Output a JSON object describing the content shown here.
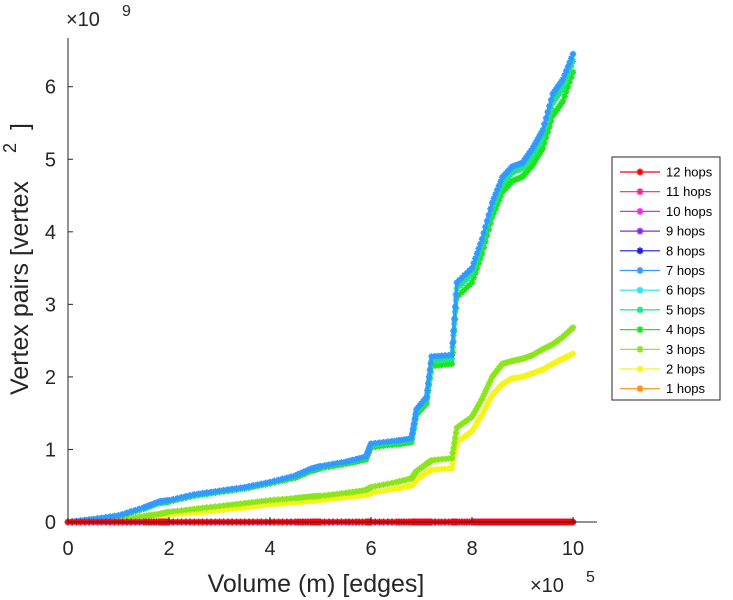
{
  "chart_data": {
    "type": "line",
    "title": "",
    "xlabel": "Volume (m) [edges]",
    "ylabel_text": "Vertex pairs [vertex",
    "ylabel_superscript": "2",
    "ylabel_close": "]",
    "x_exponent_label": "×10",
    "x_exponent": "5",
    "y_exponent_label": "×10",
    "y_exponent": "9",
    "xlim": [
      0,
      10.5
    ],
    "ylim": [
      0,
      6.8
    ],
    "x_ticks": [
      0,
      2,
      4,
      6,
      8,
      10
    ],
    "x_tick_labels": [
      "0",
      "2",
      "4",
      "6",
      "8",
      "10"
    ],
    "y_ticks": [
      0,
      1,
      2,
      3,
      4,
      5,
      6
    ],
    "y_tick_labels": [
      "0",
      "1",
      "2",
      "3",
      "4",
      "5",
      "6"
    ],
    "marker": "asterisk",
    "grid": false,
    "legend_position": "right",
    "x": [
      0,
      0.5,
      1,
      1.5,
      1.8,
      2,
      2.5,
      3,
      3.5,
      4,
      4.5,
      4.8,
      5,
      5.5,
      5.9,
      6.0,
      6.5,
      6.8,
      6.9,
      7.1,
      7.2,
      7.6,
      7.7,
      8.0,
      8.2,
      8.4,
      8.6,
      8.8,
      9.0,
      9.2,
      9.4,
      9.6,
      9.8,
      10
    ],
    "series": [
      {
        "name": "12 hops",
        "color": "#ff0000",
        "values": [
          0,
          0,
          0,
          0,
          0,
          0,
          0,
          0,
          0,
          0,
          0,
          0,
          0,
          0,
          0,
          0,
          0,
          0,
          0,
          0,
          0,
          0,
          0,
          0,
          0,
          0,
          0,
          0,
          0,
          0,
          0,
          0,
          0,
          0
        ]
      },
      {
        "name": "11 hops",
        "color": "#ff1f8f",
        "values": [
          0,
          0,
          0,
          0,
          0,
          0,
          0,
          0,
          0,
          0,
          0,
          0,
          0,
          0,
          0,
          0,
          0,
          0,
          0,
          0,
          0,
          0,
          0,
          0,
          0,
          0,
          0,
          0,
          0,
          0,
          0,
          0,
          0,
          0
        ]
      },
      {
        "name": "10 hops",
        "color": "#f026f0",
        "values": [
          0,
          0,
          0,
          0,
          0,
          0,
          0,
          0,
          0,
          0,
          0,
          0,
          0,
          0,
          0,
          0,
          0,
          0,
          0,
          0,
          0,
          0,
          0,
          0,
          0,
          0,
          0,
          0,
          0,
          0,
          0,
          0,
          0,
          0
        ]
      },
      {
        "name": "9 hops",
        "color": "#8a2be2",
        "values": [
          0,
          0,
          0,
          0,
          0,
          0,
          0,
          0,
          0,
          0,
          0,
          0,
          0,
          0,
          0,
          0,
          0,
          0,
          0,
          0,
          0,
          0,
          0,
          0,
          0,
          0,
          0,
          0,
          0,
          0,
          0,
          0,
          0,
          0
        ]
      },
      {
        "name": "8 hops",
        "color": "#1a1ae6",
        "values": [
          0,
          0,
          0,
          0,
          0,
          0,
          0,
          0,
          0,
          0,
          0,
          0,
          0,
          0,
          0,
          0,
          0,
          0,
          0,
          0,
          0,
          0,
          0,
          0,
          0,
          0,
          0,
          0,
          0,
          0,
          0,
          0,
          0,
          0
        ]
      },
      {
        "name": "7 hops",
        "color": "#3399ff",
        "values": [
          0,
          0.04,
          0.09,
          0.2,
          0.28,
          0.3,
          0.38,
          0.43,
          0.48,
          0.55,
          0.64,
          0.73,
          0.77,
          0.83,
          0.9,
          1.08,
          1.12,
          1.15,
          1.55,
          1.72,
          2.28,
          2.3,
          3.3,
          3.5,
          3.9,
          4.4,
          4.75,
          4.9,
          4.95,
          5.15,
          5.4,
          5.9,
          6.1,
          6.45
        ]
      },
      {
        "name": "6 hops",
        "color": "#26e6f2",
        "values": [
          0,
          0.04,
          0.09,
          0.2,
          0.28,
          0.3,
          0.38,
          0.43,
          0.48,
          0.55,
          0.64,
          0.73,
          0.77,
          0.83,
          0.9,
          1.08,
          1.12,
          1.15,
          1.55,
          1.72,
          2.28,
          2.3,
          3.3,
          3.5,
          3.9,
          4.4,
          4.75,
          4.9,
          4.95,
          5.15,
          5.4,
          5.9,
          6.1,
          6.45
        ]
      },
      {
        "name": "5 hops",
        "color": "#1ae68a",
        "values": [
          0,
          0.04,
          0.09,
          0.19,
          0.27,
          0.29,
          0.37,
          0.42,
          0.47,
          0.54,
          0.63,
          0.72,
          0.76,
          0.82,
          0.89,
          1.06,
          1.1,
          1.13,
          1.52,
          1.68,
          2.22,
          2.25,
          3.22,
          3.42,
          3.82,
          4.32,
          4.66,
          4.82,
          4.88,
          5.05,
          5.3,
          5.78,
          5.98,
          6.35
        ]
      },
      {
        "name": "4 hops",
        "color": "#1ae61a",
        "values": [
          0,
          0.03,
          0.08,
          0.18,
          0.26,
          0.28,
          0.36,
          0.41,
          0.46,
          0.53,
          0.61,
          0.7,
          0.74,
          0.8,
          0.86,
          1.03,
          1.07,
          1.1,
          1.48,
          1.64,
          2.15,
          2.18,
          3.1,
          3.3,
          3.7,
          4.2,
          4.55,
          4.7,
          4.76,
          4.92,
          5.15,
          5.6,
          5.8,
          6.2
        ]
      },
      {
        "name": "3 hops",
        "color": "#8ae61a",
        "values": [
          0,
          0.02,
          0.04,
          0.08,
          0.11,
          0.14,
          0.18,
          0.22,
          0.26,
          0.3,
          0.33,
          0.35,
          0.36,
          0.4,
          0.44,
          0.48,
          0.55,
          0.6,
          0.7,
          0.8,
          0.85,
          0.88,
          1.3,
          1.45,
          1.7,
          2.0,
          2.18,
          2.22,
          2.25,
          2.3,
          2.38,
          2.45,
          2.55,
          2.68
        ]
      },
      {
        "name": "2 hops",
        "color": "#f5f51a",
        "values": [
          0,
          0.01,
          0.03,
          0.06,
          0.08,
          0.1,
          0.13,
          0.16,
          0.2,
          0.24,
          0.27,
          0.29,
          0.3,
          0.34,
          0.37,
          0.4,
          0.46,
          0.5,
          0.58,
          0.68,
          0.72,
          0.74,
          1.1,
          1.25,
          1.48,
          1.75,
          1.9,
          1.98,
          2.0,
          2.05,
          2.1,
          2.18,
          2.25,
          2.32
        ]
      },
      {
        "name": "1 hops",
        "color": "#ff8c1a",
        "values": [
          0,
          0,
          0,
          0,
          0,
          0,
          0,
          0,
          0,
          0,
          0,
          0,
          0,
          0,
          0,
          0,
          0,
          0,
          0,
          0,
          0,
          0,
          0,
          0,
          0,
          0,
          0,
          0,
          0,
          0,
          0,
          0,
          0,
          0
        ]
      }
    ]
  }
}
